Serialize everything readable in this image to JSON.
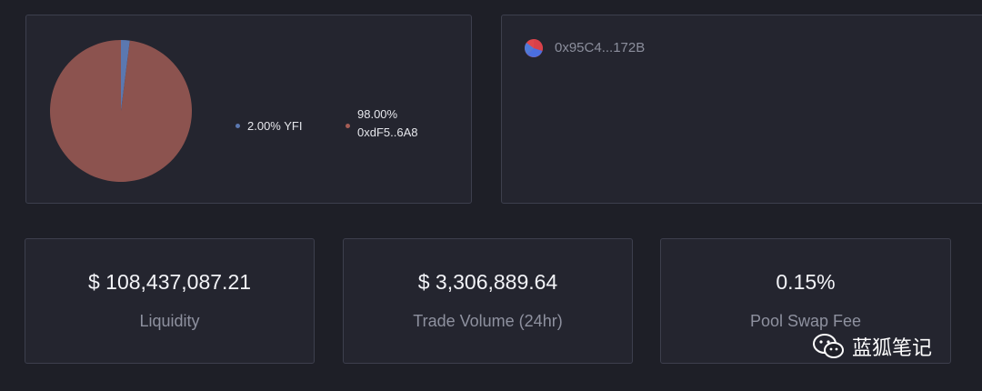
{
  "composition": {
    "legend": [
      {
        "percent": "2.00%",
        "label": "YFI",
        "color": "#5b78b0",
        "share": 0.02
      },
      {
        "percent": "98.00%",
        "label": "0xdF5..6A8",
        "color": "#a55d55",
        "share": 0.98
      }
    ]
  },
  "pool": {
    "address": "0x95C4...172B",
    "icon": "pie-chart-icon"
  },
  "stats": [
    {
      "value": "$ 108,437,087.21",
      "label": "Liquidity"
    },
    {
      "value": "$ 3,306,889.64",
      "label": "Trade Volume (24hr)"
    },
    {
      "value": "0.15%",
      "label": "Pool Swap Fee"
    }
  ],
  "watermark": {
    "icon": "wechat-icon",
    "text": "蓝狐笔记"
  }
}
